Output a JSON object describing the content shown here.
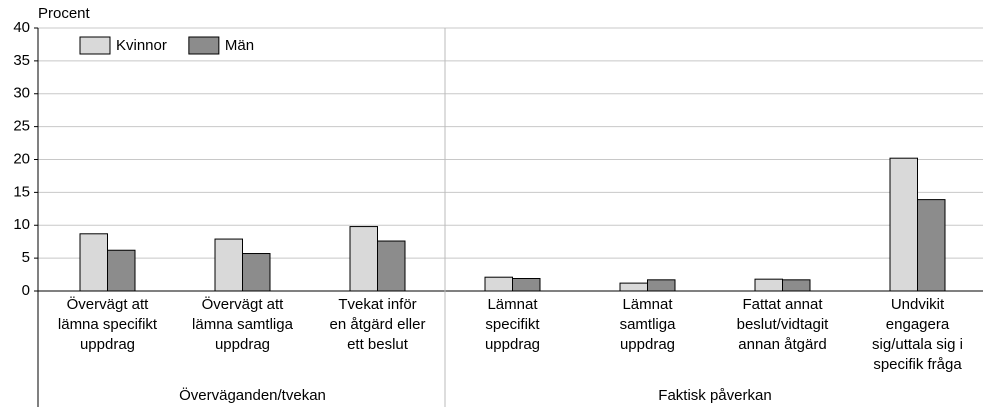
{
  "chart_data": {
    "type": "bar",
    "y_label": "Procent",
    "groups": [
      {
        "label": "Överväganden/tvekan",
        "categories": [
          "Övervägt att\nlämna specifikt\nuppdrag",
          "Övervägt att\nlämna samtliga\nuppdrag",
          "Tvekat inför\nen åtgärd eller\nett beslut"
        ]
      },
      {
        "label": "Faktisk påverkan",
        "categories": [
          "Lämnat\nspecifikt\nuppdrag",
          "Lämnat\nsamtliga\nuppdrag",
          "Fattat annat\nbeslut/vidtagit\nannan åtgärd",
          "Undvikit\nengagera\nsig/uttala sig i\nspecifik fråga"
        ]
      }
    ],
    "series": [
      {
        "name": "Kvinnor",
        "color": "#d9d9d9",
        "values": [
          8.7,
          7.9,
          9.8,
          2.1,
          1.2,
          1.8,
          20.2
        ]
      },
      {
        "name": "Män",
        "color": "#8c8c8c",
        "values": [
          6.2,
          5.7,
          7.6,
          1.9,
          1.7,
          1.7,
          13.9
        ]
      }
    ],
    "ylim": [
      0,
      40
    ],
    "yticks": [
      0,
      5,
      10,
      15,
      20,
      25,
      30,
      35,
      40
    ],
    "grid": true,
    "legend": "top-left"
  }
}
